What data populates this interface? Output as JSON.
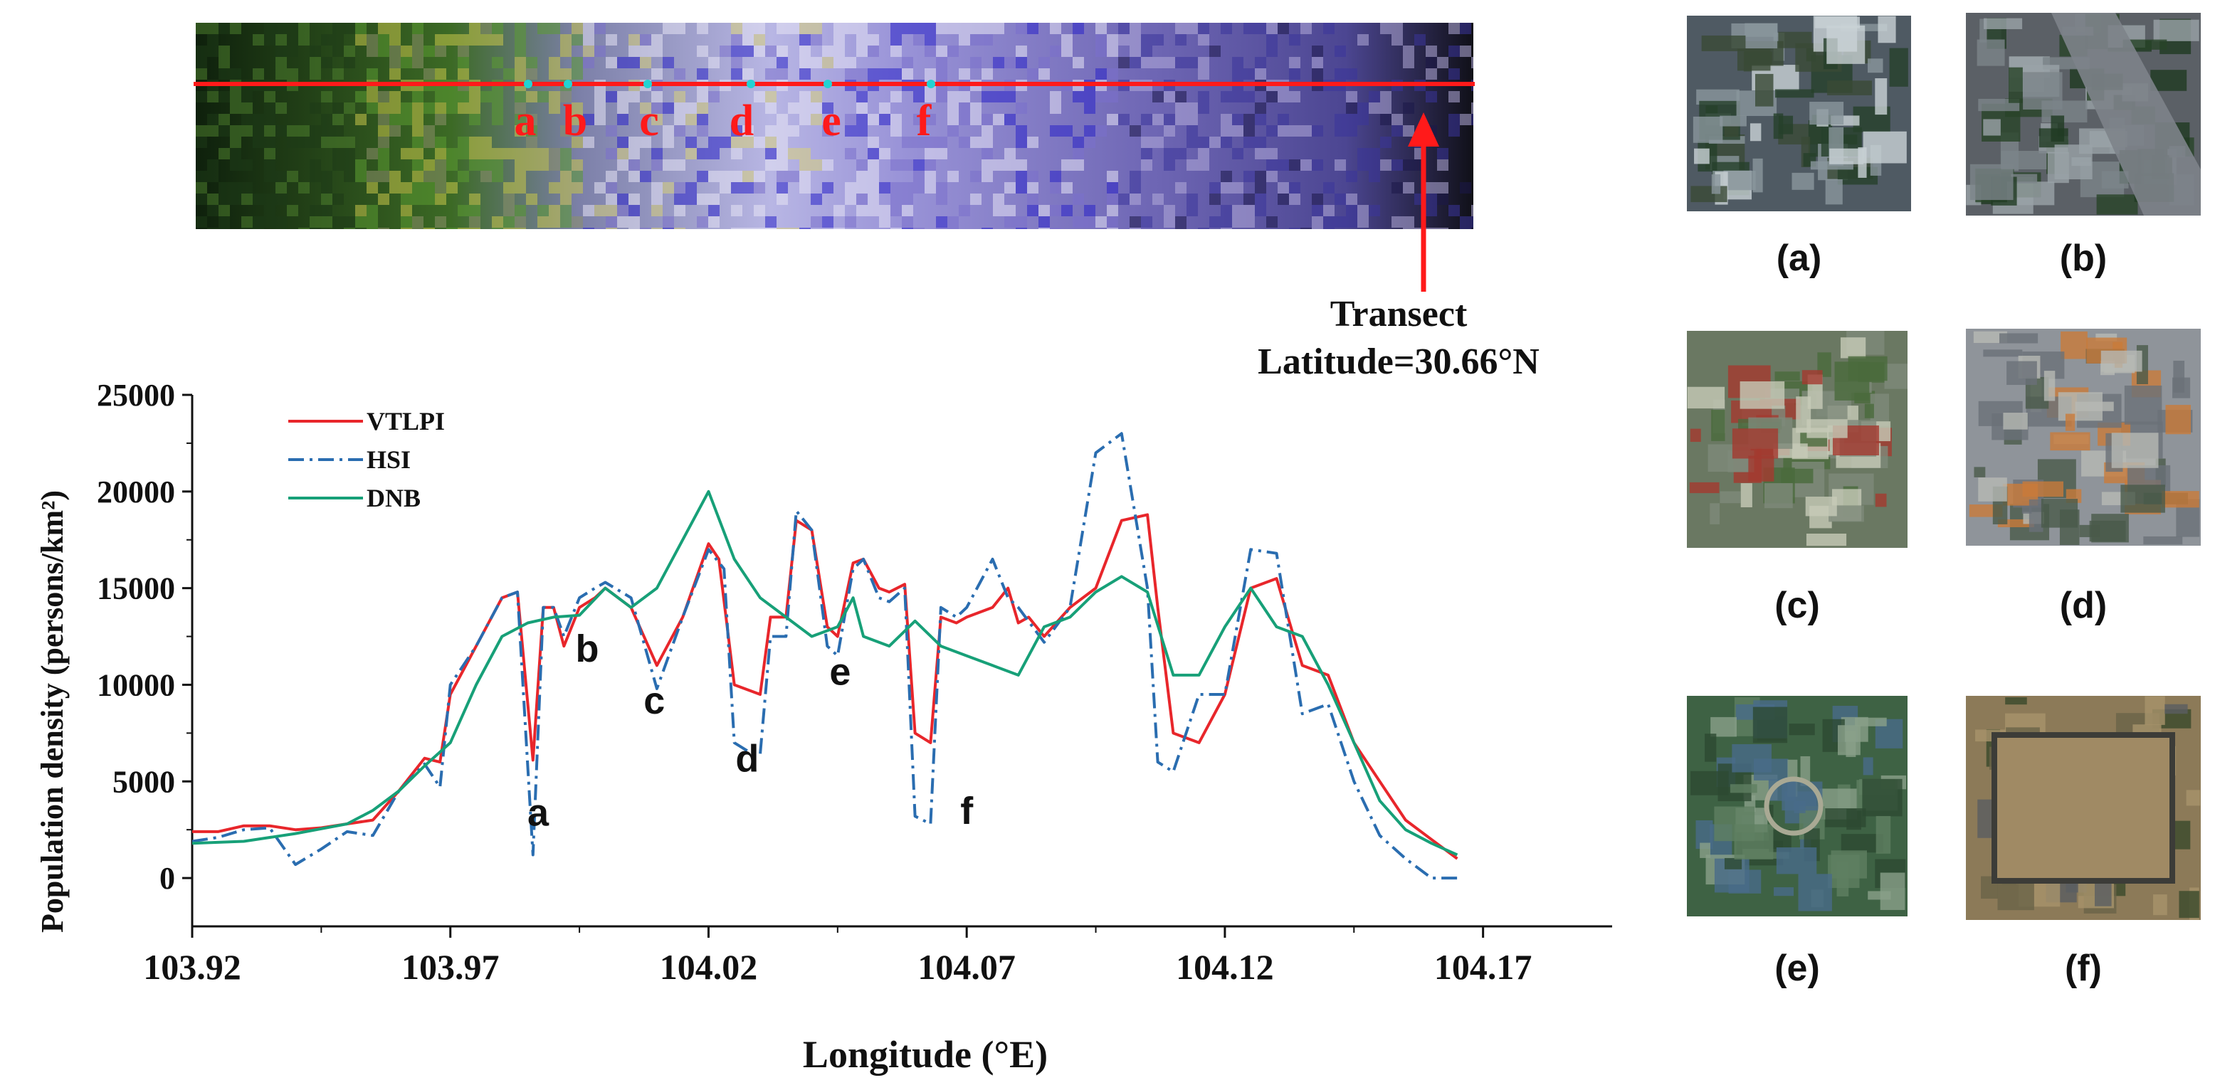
{
  "transect": {
    "label_line1": "Transect",
    "label_line2": "Latitude=30.66°N",
    "point_labels": [
      "a",
      "b",
      "c",
      "d",
      "e",
      "f"
    ],
    "line_color": "#ff1a1a",
    "marker_color": "#22d3d3"
  },
  "thumbnails": {
    "labels": [
      "(a)",
      "(b)",
      "(c)",
      "(d)",
      "(e)",
      "(f)"
    ],
    "scene_types": [
      "dense-urban-buildings",
      "highway-road",
      "residential-red-roofs",
      "construction-site",
      "park-green-campus",
      "walled-bare-lot"
    ]
  },
  "chart_data": {
    "type": "line",
    "title": "",
    "xlabel": "Longitude (°E)",
    "ylabel": "Population density (persons/km²)",
    "xlim": [
      103.92,
      104.195
    ],
    "ylim": [
      -2500,
      25000
    ],
    "xticks": [
      103.92,
      103.97,
      104.02,
      104.07,
      104.12,
      104.17
    ],
    "xtick_labels": [
      "103.92",
      "103.97",
      "104.02",
      "104.07",
      "104.12",
      "104.17"
    ],
    "yticks": [
      0,
      5000,
      10000,
      15000,
      20000,
      25000
    ],
    "ytick_labels": [
      "0",
      "5000",
      "10000",
      "15000",
      "20000",
      "25000"
    ],
    "legend_position": "top-left",
    "annotations": [
      {
        "text": "a",
        "x": 103.987,
        "y": 2700
      },
      {
        "text": "b",
        "x": 103.9965,
        "y": 11200
      },
      {
        "text": "c",
        "x": 104.0095,
        "y": 8500
      },
      {
        "text": "d",
        "x": 104.0275,
        "y": 5500
      },
      {
        "text": "e",
        "x": 104.0455,
        "y": 10000
      },
      {
        "text": "f",
        "x": 104.07,
        "y": 2800
      }
    ],
    "series": [
      {
        "name": "VTLPI",
        "color": "#e8262b",
        "style": "solid",
        "x": [
          103.92,
          103.925,
          103.93,
          103.935,
          103.94,
          103.945,
          103.95,
          103.955,
          103.96,
          103.965,
          103.968,
          103.97,
          103.975,
          103.98,
          103.983,
          103.986,
          103.988,
          103.99,
          103.992,
          103.995,
          103.998,
          104.0,
          104.005,
          104.01,
          104.015,
          104.02,
          104.022,
          104.025,
          104.03,
          104.032,
          104.035,
          104.037,
          104.04,
          104.043,
          104.045,
          104.048,
          104.05,
          104.053,
          104.055,
          104.058,
          104.06,
          104.063,
          104.065,
          104.068,
          104.07,
          104.075,
          104.078,
          104.08,
          104.082,
          104.085,
          104.09,
          104.095,
          104.1,
          104.105,
          104.107,
          104.11,
          104.115,
          104.12,
          104.125,
          104.13,
          104.135,
          104.14,
          104.145,
          104.15,
          104.155,
          104.16,
          104.165
        ],
        "values": [
          2400,
          2400,
          2700,
          2700,
          2500,
          2600,
          2800,
          3000,
          4500,
          6200,
          6000,
          9500,
          12000,
          14500,
          14800,
          6100,
          14000,
          14000,
          12000,
          14000,
          14500,
          15000,
          14000,
          11000,
          13500,
          17300,
          16500,
          10000,
          9500,
          13500,
          13500,
          18500,
          18000,
          13000,
          12500,
          16300,
          16500,
          15000,
          14800,
          15200,
          7500,
          7000,
          13500,
          13200,
          13500,
          14000,
          15000,
          13200,
          13500,
          12500,
          14000,
          15000,
          18500,
          18800,
          14000,
          7500,
          7000,
          9500,
          15000,
          15500,
          11000,
          10500,
          7000,
          5000,
          3000,
          2000,
          1000
        ]
      },
      {
        "name": "HSI",
        "color": "#2a6db0",
        "style": "dashdot",
        "x": [
          103.92,
          103.925,
          103.93,
          103.935,
          103.94,
          103.945,
          103.95,
          103.955,
          103.96,
          103.965,
          103.968,
          103.97,
          103.975,
          103.98,
          103.983,
          103.986,
          103.988,
          103.99,
          103.992,
          103.995,
          103.998,
          104.0,
          104.005,
          104.01,
          104.015,
          104.02,
          104.023,
          104.025,
          104.028,
          104.03,
          104.032,
          104.035,
          104.037,
          104.04,
          104.043,
          104.045,
          104.048,
          104.05,
          104.053,
          104.055,
          104.058,
          104.06,
          104.063,
          104.065,
          104.068,
          104.07,
          104.075,
          104.078,
          104.08,
          104.085,
          104.09,
          104.095,
          104.1,
          104.105,
          104.107,
          104.11,
          104.115,
          104.12,
          104.125,
          104.13,
          104.135,
          104.14,
          104.145,
          104.15,
          104.155,
          104.16,
          104.165
        ],
        "values": [
          1900,
          2100,
          2500,
          2600,
          700,
          1500,
          2400,
          2200,
          4500,
          5900,
          4700,
          10000,
          12000,
          14500,
          14800,
          1200,
          14000,
          14000,
          12500,
          14500,
          15000,
          15300,
          14500,
          9800,
          13500,
          17000,
          16000,
          7000,
          6500,
          6400,
          12500,
          12500,
          19000,
          18000,
          12000,
          11500,
          16000,
          16500,
          14500,
          14300,
          15000,
          3200,
          2800,
          14000,
          13500,
          14000,
          16500,
          14500,
          14000,
          12200,
          14000,
          22000,
          23000,
          15000,
          6000,
          5500,
          9500,
          9500,
          17000,
          16800,
          8500,
          9000,
          5000,
          2200,
          1000,
          0,
          0
        ]
      },
      {
        "name": "DNB",
        "color": "#17a078",
        "style": "solid",
        "x": [
          103.92,
          103.93,
          103.94,
          103.95,
          103.955,
          103.96,
          103.965,
          103.97,
          103.975,
          103.98,
          103.985,
          103.99,
          103.995,
          104.0,
          104.005,
          104.01,
          104.015,
          104.02,
          104.025,
          104.03,
          104.035,
          104.04,
          104.045,
          104.048,
          104.05,
          104.055,
          104.06,
          104.065,
          104.07,
          104.075,
          104.08,
          104.085,
          104.09,
          104.095,
          104.1,
          104.105,
          104.11,
          104.115,
          104.12,
          104.125,
          104.13,
          104.135,
          104.14,
          104.145,
          104.15,
          104.155,
          104.16,
          104.165
        ],
        "values": [
          1800,
          1900,
          2300,
          2800,
          3500,
          4500,
          5800,
          7000,
          10000,
          12500,
          13200,
          13500,
          13600,
          15000,
          14000,
          15000,
          17500,
          20000,
          16500,
          14500,
          13500,
          12500,
          13000,
          14500,
          12500,
          12000,
          13300,
          12000,
          11500,
          11000,
          10500,
          13000,
          13500,
          14800,
          15600,
          14800,
          10500,
          10500,
          13000,
          15000,
          13000,
          12500,
          10000,
          7000,
          4000,
          2500,
          1800,
          1200
        ]
      }
    ]
  }
}
